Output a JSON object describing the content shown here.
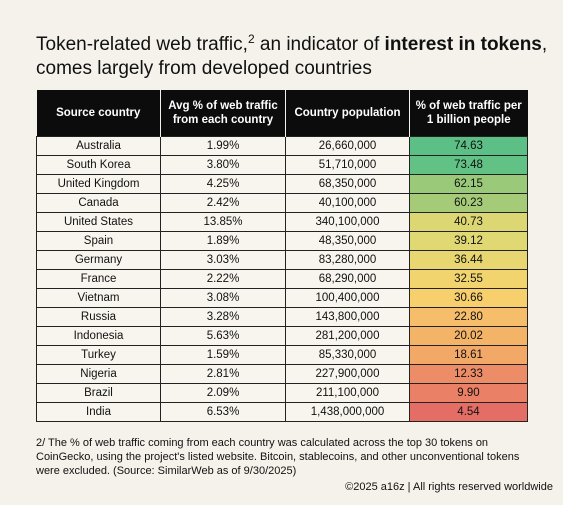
{
  "title": {
    "part1": "Token-related web traffic,",
    "sup": "2",
    "part2": " an indicator of ",
    "bold": "interest in tokens",
    "part3": ",",
    "line2": "comes largely from developed countries"
  },
  "table": {
    "headers": [
      "Source country",
      "Avg % of web traffic from each country",
      "Country population",
      "% of web traffic per 1 billion people"
    ],
    "rows": [
      {
        "country": "Australia",
        "avg": "1.99%",
        "population": "26,660,000",
        "per_billion": "74.63",
        "color": "#5cbf85"
      },
      {
        "country": "South Korea",
        "avg": "3.80%",
        "population": "51,710,000",
        "per_billion": "73.48",
        "color": "#62c185"
      },
      {
        "country": "United Kingdom",
        "avg": "4.25%",
        "population": "68,350,000",
        "per_billion": "62.15",
        "color": "#9bc97a"
      },
      {
        "country": "Canada",
        "avg": "2.42%",
        "population": "40,100,000",
        "per_billion": "60.23",
        "color": "#a6cb78"
      },
      {
        "country": "United States",
        "avg": "13.85%",
        "population": "340,100,000",
        "per_billion": "40.73",
        "color": "#dcd772"
      },
      {
        "country": "Spain",
        "avg": "1.89%",
        "population": "48,350,000",
        "per_billion": "39.12",
        "color": "#e0d872"
      },
      {
        "country": "Germany",
        "avg": "3.03%",
        "population": "83,280,000",
        "per_billion": "36.44",
        "color": "#e8d770"
      },
      {
        "country": "France",
        "avg": "2.22%",
        "population": "68,290,000",
        "per_billion": "32.55",
        "color": "#f2d46f"
      },
      {
        "country": "Vietnam",
        "avg": "3.08%",
        "population": "100,400,000",
        "per_billion": "30.66",
        "color": "#f7cf6d"
      },
      {
        "country": "Russia",
        "avg": "3.28%",
        "population": "143,800,000",
        "per_billion": "22.80",
        "color": "#f6bd6a"
      },
      {
        "country": "Indonesia",
        "avg": "5.63%",
        "population": "281,200,000",
        "per_billion": "20.02",
        "color": "#f4b468"
      },
      {
        "country": "Turkey",
        "avg": "1.59%",
        "population": "85,330,000",
        "per_billion": "18.61",
        "color": "#f2a968"
      },
      {
        "country": "Nigeria",
        "avg": "2.81%",
        "population": "227,900,000",
        "per_billion": "12.33",
        "color": "#ec8d67"
      },
      {
        "country": "Brazil",
        "avg": "2.09%",
        "population": "211,100,000",
        "per_billion": "9.90",
        "color": "#ea8066"
      },
      {
        "country": "India",
        "avg": "6.53%",
        "population": "1,438,000,000",
        "per_billion": "4.54",
        "color": "#e46e66"
      }
    ]
  },
  "footnote": "2/ The % of web traffic coming from each country was calculated across the top 30 tokens on CoinGecko, using the project's listed website. Bitcoin, stablecoins, and other unconventional tokens were excluded. (Source: SimilarWeb as of 9/30/2025)",
  "copyright": "©2025 a16z | All rights reserved worldwide"
}
